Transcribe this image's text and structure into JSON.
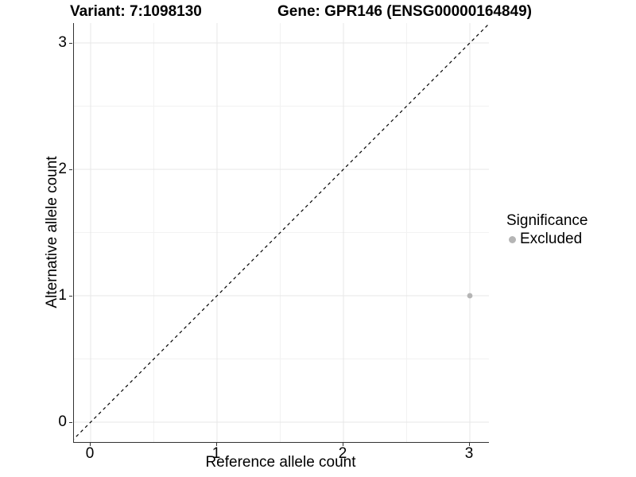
{
  "header": {
    "variant_title": "Variant: 7:1098130",
    "gene_title": "Gene: GPR146 (ENSG00000164849)"
  },
  "axes": {
    "x": {
      "label": "Reference allele count",
      "tick_labels": [
        "0",
        "1",
        "2",
        "3"
      ]
    },
    "y": {
      "label": "Alternative allele count",
      "tick_labels": [
        "0",
        "1",
        "2",
        "3"
      ]
    }
  },
  "legend": {
    "title": "Significance",
    "items": [
      {
        "label": "Excluded",
        "color": "#b5b5b5"
      }
    ]
  },
  "colors": {
    "background": "#ffffff",
    "grid_major": "#e7e7e7",
    "grid_minor": "#f2f2f2",
    "axis_line": "#333333",
    "reference_line": "#000000",
    "excluded_point": "#b5b5b5",
    "text": "#000000"
  },
  "chart_data": {
    "type": "scatter",
    "title": "Variant: 7:1098130   Gene: GPR146 (ENSG00000164849)",
    "xlabel": "Reference allele count",
    "ylabel": "Alternative allele count",
    "x_ticks": [
      0,
      1,
      2,
      3
    ],
    "y_ticks": [
      0,
      1,
      2,
      3
    ],
    "xlim": [
      -0.15,
      3.15
    ],
    "ylim": [
      -0.15,
      3.15
    ],
    "grid": true,
    "legend_position": "right",
    "series": [
      {
        "name": "Excluded",
        "color": "#b5b5b5",
        "points": [
          {
            "x": 3,
            "y": 1
          }
        ]
      }
    ],
    "annotations": [
      {
        "type": "identity-line",
        "slope": 1,
        "intercept": 0,
        "style": "dashed",
        "color": "#000000"
      }
    ]
  }
}
